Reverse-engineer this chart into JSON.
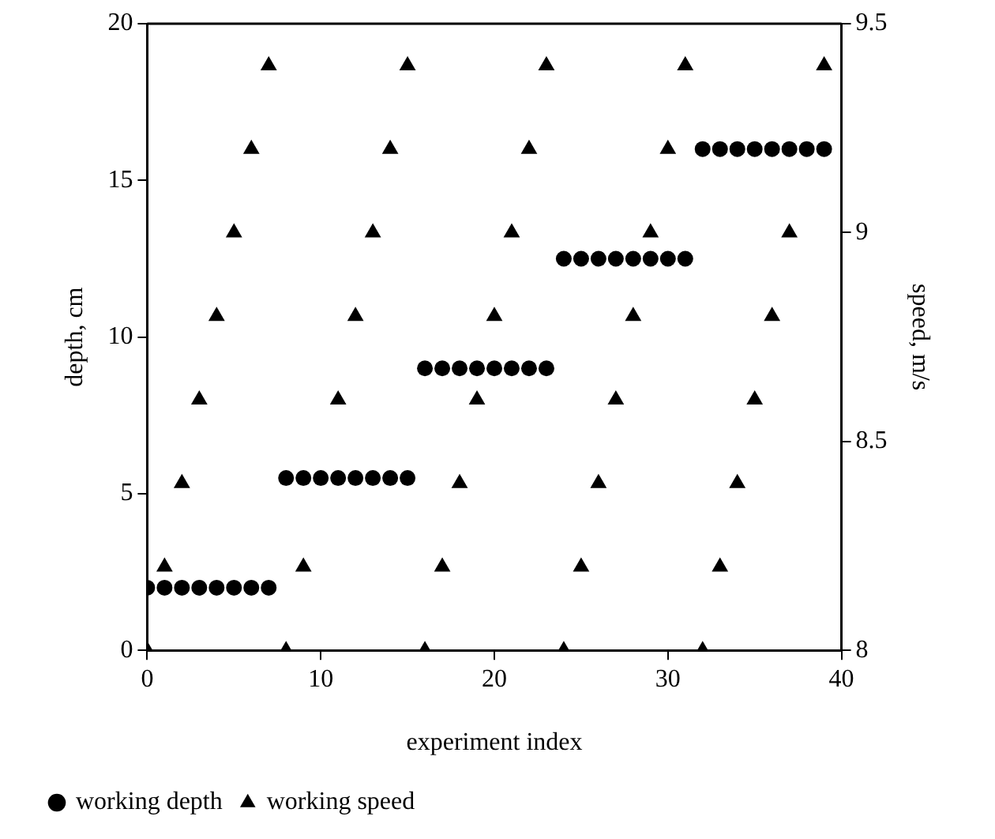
{
  "chart_data": {
    "type": "scatter",
    "xlabel": "experiment index",
    "ylabel": "depth, cm",
    "y2label": "speed, m/s",
    "x": [
      0,
      1,
      2,
      3,
      4,
      5,
      6,
      7,
      8,
      9,
      10,
      11,
      12,
      13,
      14,
      15,
      16,
      17,
      18,
      19,
      20,
      21,
      22,
      23,
      24,
      25,
      26,
      27,
      28,
      29,
      30,
      31,
      32,
      33,
      34,
      35,
      36,
      37,
      38,
      39
    ],
    "series": [
      {
        "name": "working depth",
        "color": "#000000",
        "marker": "circle",
        "values": [
          2,
          2,
          2,
          2,
          2,
          2,
          2,
          2,
          5.5,
          5.5,
          5.5,
          5.5,
          5.5,
          5.5,
          5.5,
          5.5,
          9,
          9,
          9,
          9,
          9,
          9,
          9,
          9,
          12.5,
          12.5,
          12.5,
          12.5,
          12.5,
          12.5,
          12.5,
          12.5,
          16,
          16,
          16,
          16,
          16,
          16,
          16,
          16
        ]
      },
      {
        "name": "working speed",
        "color": "#000000",
        "marker": "triangle",
        "axis": "y2",
        "values": [
          8,
          8.2,
          8.4,
          8.6,
          8.8,
          9,
          9.2,
          9.4,
          8,
          8.2,
          null,
          8.6,
          8.8,
          9,
          9.2,
          9.4,
          8,
          8.2,
          8.4,
          8.6,
          8.8,
          9,
          9.2,
          9.4,
          8,
          8.2,
          8.4,
          8.6,
          8.8,
          9,
          9.2,
          9.4,
          8,
          8.2,
          8.4,
          8.6,
          8.8,
          9,
          null,
          9.4
        ]
      }
    ],
    "xlim": [
      0,
      40
    ],
    "xticks": [
      0,
      10,
      20,
      30,
      40
    ],
    "ylim": [
      0,
      20
    ],
    "yticks": [
      0,
      5,
      10,
      15,
      20
    ],
    "y2lim": [
      8,
      9.5
    ],
    "y2ticks": [
      8,
      8.5,
      9,
      9.5
    ],
    "grid": false,
    "legend": "bottom left"
  }
}
